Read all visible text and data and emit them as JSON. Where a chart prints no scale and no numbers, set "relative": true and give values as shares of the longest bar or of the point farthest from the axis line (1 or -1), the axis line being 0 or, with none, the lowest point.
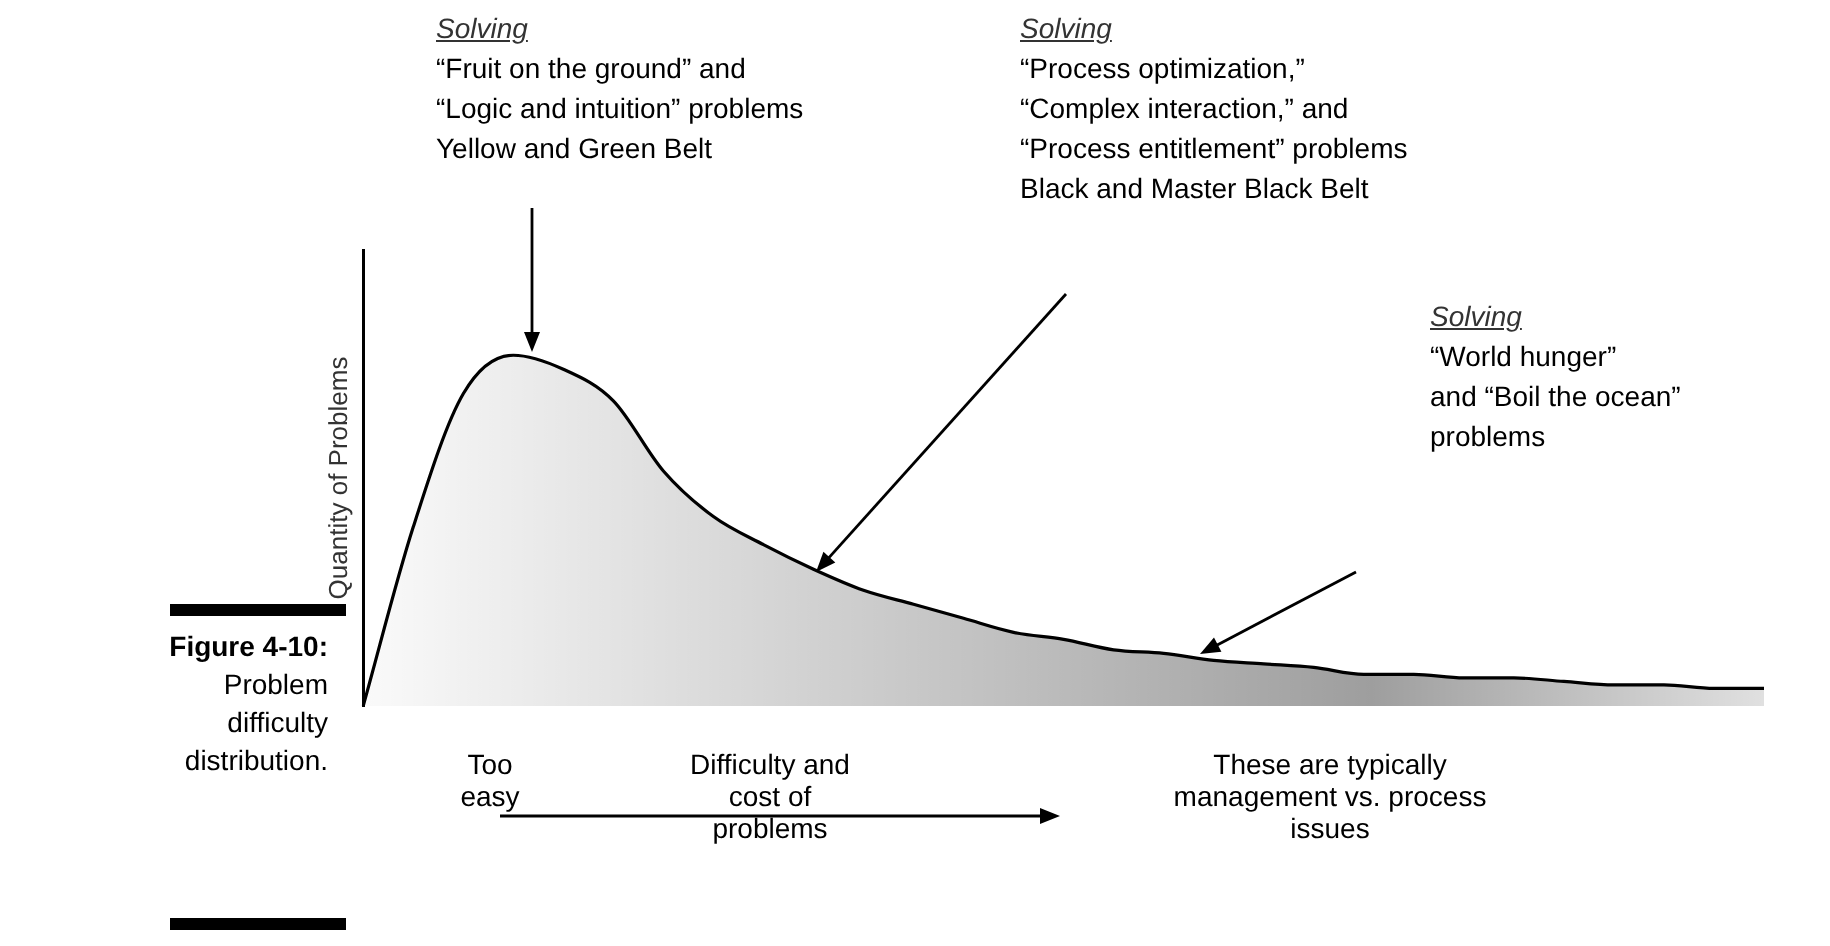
{
  "chart_data": {
    "type": "area",
    "relative": true,
    "tick_labels": false,
    "categories": [
      null,
      null,
      null,
      null,
      null,
      null,
      null,
      null,
      null,
      null,
      null,
      null,
      null,
      null,
      null,
      null,
      null,
      null,
      null,
      null,
      null,
      null,
      null,
      null,
      null,
      null,
      null,
      null,
      null
    ],
    "values": [
      0,
      0.51,
      0.89,
      1,
      0.96,
      0.87,
      0.67,
      0.54,
      0.46,
      0.39,
      0.33,
      0.29,
      0.25,
      0.21,
      0.19,
      0.16,
      0.15,
      0.13,
      0.12,
      0.11,
      0.09,
      0.09,
      0.08,
      0.08,
      0.07,
      0.06,
      0.06,
      0.05,
      0.05
    ],
    "color": "#000000",
    "ylabel": "Quantity of Problems",
    "xlabel": "Difficulty and\ncost of\nproblems",
    "annotations": [
      "Solving\n“Fruit on the ground” and\n“Logic and intuition” problems\nYellow and Green Belt",
      "Solving\n“Process optimization,”\n“Complex interaction,” and\n“Process entitlement” problems\nBlack and Master Black Belt",
      "Solving\n“World hunger”\nand “Boil the ocean”\nproblems",
      "Too\neasy",
      "These are typically\nmanagement vs. process\nissues",
      "Figure 4-10:\nProblem\ndifficulty\ndistribution."
    ]
  }
}
